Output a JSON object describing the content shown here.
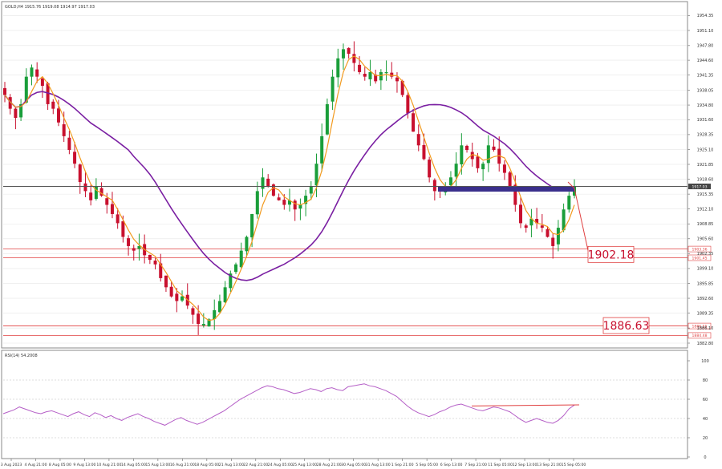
{
  "chart_data": [
    {
      "type": "candlestick",
      "title": "GOLD,H4  1915.76 1919.08 1914.97 1917.03",
      "ylim": [
        1882.8,
        1956.0
      ],
      "y_ticks": [
        "1954.35",
        "1951.10",
        "1947.80",
        "1944.60",
        "1941.35",
        "1938.05",
        "1934.80",
        "1931.60",
        "1928.35",
        "1925.10",
        "1921.85",
        "1918.60",
        "1915.35",
        "1912.10",
        "1908.85",
        "1905.60",
        "1902.35",
        "1899.10",
        "1895.85",
        "1892.60",
        "1889.35",
        "1886.10",
        "1882.80"
      ],
      "x_ticks": [
        "3 Aug 2023",
        "4 Aug 21:00",
        "8 Aug 05:00",
        "9 Aug 13:00",
        "10 Aug 21:00",
        "14 Aug 05:00",
        "15 Aug 13:00",
        "16 Aug 21:00",
        "18 Aug 05:00",
        "21 Aug 13:00",
        "22 Aug 21:00",
        "24 Aug 05:00",
        "25 Aug 13:00",
        "28 Aug 21:00",
        "30 Aug 05:00",
        "31 Aug 13:00",
        "1 Sep 21:00",
        "5 Sep 05:00",
        "6 Sep 13:00",
        "7 Sep 21:00",
        "11 Sep 05:00",
        "12 Sep 13:00",
        "13 Sep 21:00",
        "15 Sep 05:00"
      ],
      "close_path": [
        1937,
        1934,
        1932,
        1935,
        1941,
        1943,
        1941,
        1939,
        1935,
        1934,
        1931,
        1928,
        1925,
        1922,
        1918,
        1916,
        1914,
        1917,
        1915,
        1913,
        1911,
        1909,
        1906,
        1904,
        1903,
        1904,
        1902,
        1901,
        1900,
        1897,
        1895,
        1893,
        1892,
        1893,
        1891,
        1889,
        1887,
        1887,
        1888,
        1890,
        1892,
        1895,
        1898,
        1900,
        1903,
        1906,
        1911,
        1916,
        1919,
        1917,
        1915,
        1914,
        1913,
        1914,
        1912,
        1913,
        1915,
        1917,
        1922,
        1928,
        1935,
        1941,
        1945,
        1947,
        1946,
        1944,
        1942,
        1941,
        1942,
        1940,
        1942,
        1942,
        1941,
        1940,
        1937,
        1933,
        1929,
        1926,
        1923,
        1919,
        1916,
        1916,
        1917,
        1919,
        1922,
        1926,
        1925,
        1923,
        1921,
        1922,
        1926,
        1925,
        1922,
        1920,
        1917,
        1913,
        1909,
        1908,
        1910,
        1909,
        1908,
        1906,
        1904,
        1908,
        1912,
        1915,
        1917
      ],
      "levels": [
        {
          "value": 1903.36,
          "label": "1903.36",
          "color": "#e04040"
        },
        {
          "value": 1901.45,
          "label": "1901.45",
          "color": "#e04040"
        },
        {
          "value": 1886.55,
          "label": "1886.55",
          "color": "#e04040"
        },
        {
          "value": 1884.48,
          "label": "1884.48",
          "color": "#e04040"
        }
      ],
      "current_price": {
        "value": 1917.03,
        "label": "1917.03"
      },
      "resistance_zone": {
        "value": 1916.6,
        "color": "#3a2f8c"
      },
      "targets": [
        {
          "value": 1902.18,
          "label": "1902.18"
        },
        {
          "value": 1886.63,
          "label": "1886.63"
        }
      ],
      "colors": {
        "bull": "#1a9e3a",
        "bear": "#c8102e",
        "ma_fast": "#f29a1f",
        "ma_slow": "#7a1fa2",
        "grid": "#e6e6e6",
        "level": "#e04040"
      }
    },
    {
      "type": "line",
      "title": "RSI(14) 54.2008",
      "ylim": [
        0,
        100
      ],
      "y_ticks": [
        "100",
        "80",
        "60",
        "40",
        "20",
        "0"
      ],
      "levels": [
        20,
        40,
        60,
        80
      ],
      "values": [
        45,
        47,
        49,
        52,
        50,
        48,
        46,
        45,
        47,
        48,
        46,
        44,
        42,
        45,
        47,
        44,
        42,
        46,
        44,
        41,
        43,
        40,
        38,
        41,
        43,
        45,
        42,
        40,
        37,
        35,
        33,
        36,
        39,
        41,
        38,
        36,
        34,
        36,
        39,
        42,
        45,
        48,
        52,
        56,
        60,
        63,
        66,
        69,
        72,
        74,
        73,
        71,
        70,
        68,
        66,
        67,
        69,
        71,
        70,
        68,
        71,
        72,
        70,
        69,
        73,
        74,
        75,
        76,
        74,
        73,
        71,
        69,
        66,
        63,
        58,
        53,
        49,
        46,
        44,
        42,
        44,
        47,
        49,
        52,
        54,
        55,
        53,
        51,
        49,
        48,
        50,
        52,
        51,
        49,
        47,
        43,
        39,
        36,
        38,
        40,
        38,
        36,
        35,
        38,
        43,
        50,
        54
      ],
      "trendline": {
        "from": 53,
        "to": 54.2
      },
      "colors": {
        "line": "#b55fc7",
        "trend": "#e04040"
      }
    }
  ]
}
